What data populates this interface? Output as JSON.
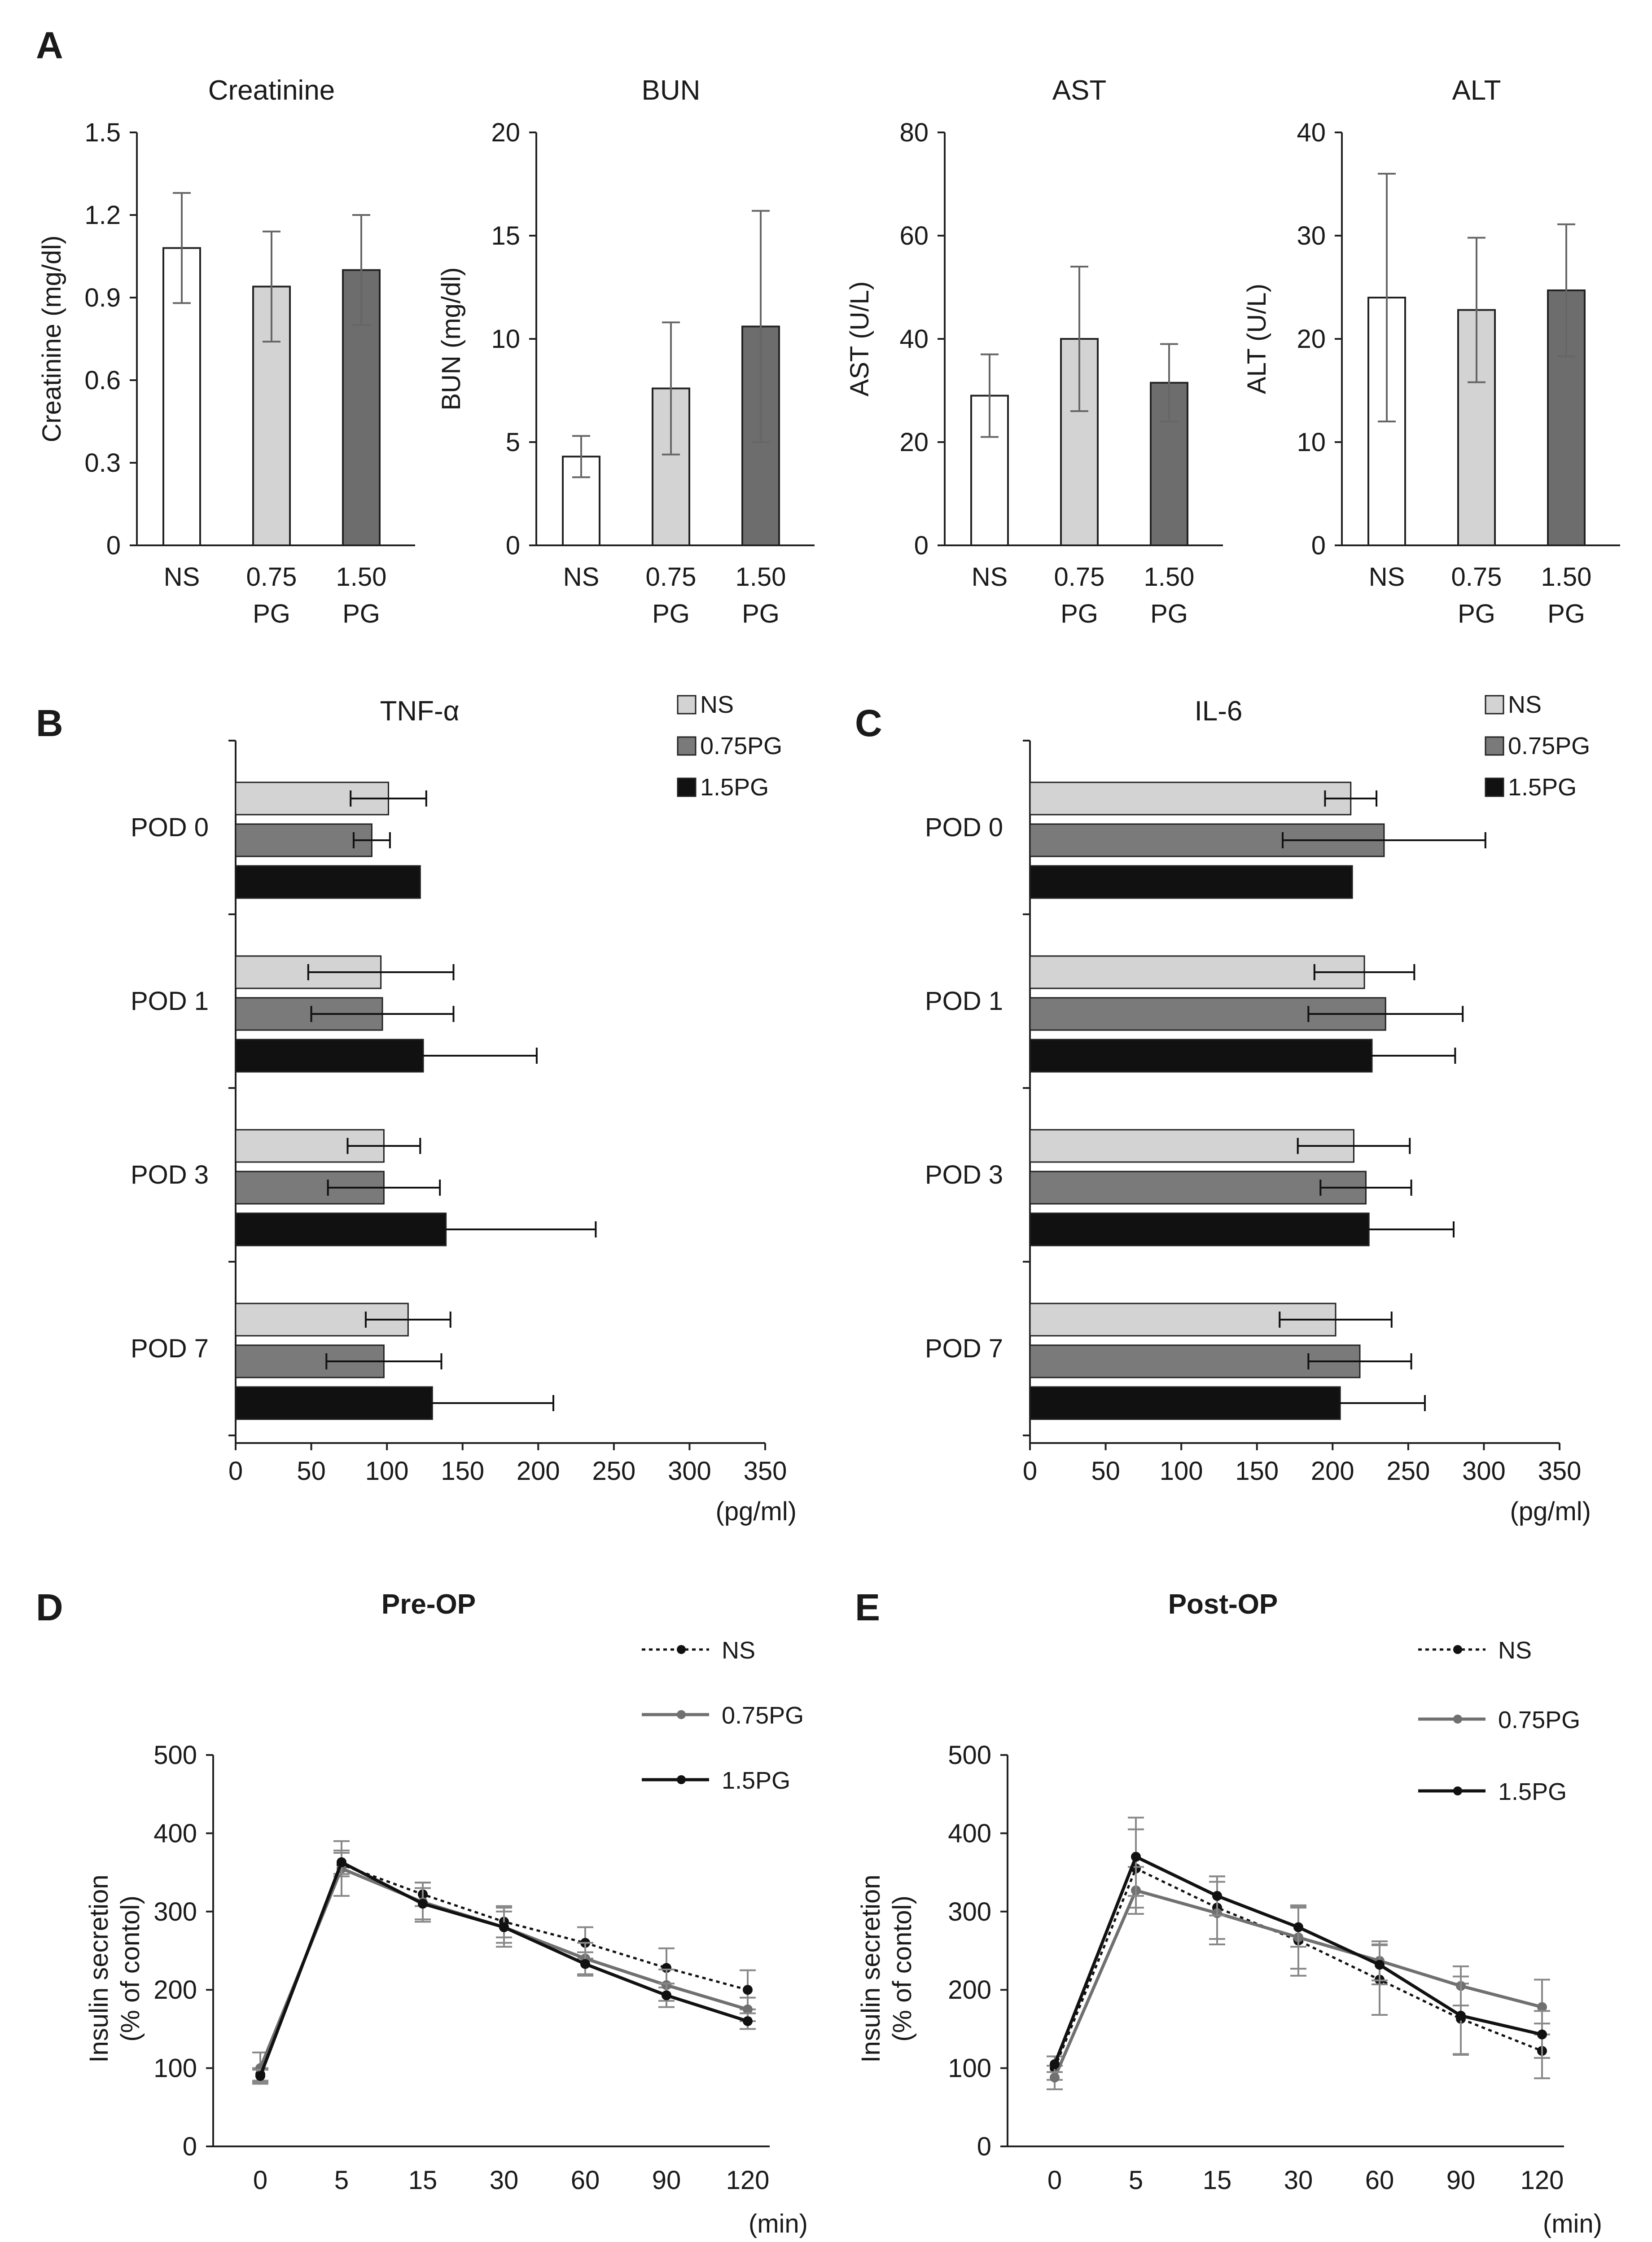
{
  "panels": {
    "A": "A",
    "B": "B",
    "C": "C",
    "D": "D",
    "E": "E"
  },
  "chart_data": [
    {
      "id": "A1",
      "type": "bar",
      "title": "Creatinine",
      "ylabel": "Creatinine (mg/dl)",
      "ylim": [
        0,
        1.5
      ],
      "yticks": [
        0,
        0.3,
        0.6,
        0.9,
        1.2,
        1.5
      ],
      "ytick_labels": [
        "0",
        "0.3",
        "0.6",
        "0.9",
        "1.2",
        "1.5"
      ],
      "categories": [
        [
          "NS"
        ],
        [
          "0.75",
          "PG"
        ],
        [
          "1.50",
          "PG"
        ]
      ],
      "values": [
        1.08,
        0.94,
        1.0
      ],
      "errors": [
        0.2,
        0.2,
        0.2
      ],
      "colors": [
        "#ffffff",
        "#d3d3d3",
        "#6d6d6d"
      ]
    },
    {
      "id": "A2",
      "type": "bar",
      "title": "BUN",
      "ylabel": "BUN (mg/dl)",
      "ylim": [
        0,
        20
      ],
      "yticks": [
        0,
        5,
        10,
        15,
        20
      ],
      "ytick_labels": [
        "0",
        "5",
        "10",
        "15",
        "20"
      ],
      "categories": [
        [
          "NS"
        ],
        [
          "0.75",
          "PG"
        ],
        [
          "1.50",
          "PG"
        ]
      ],
      "values": [
        4.3,
        7.6,
        10.6
      ],
      "errors": [
        1.0,
        3.2,
        5.6
      ],
      "colors": [
        "#ffffff",
        "#d3d3d3",
        "#6d6d6d"
      ]
    },
    {
      "id": "A3",
      "type": "bar",
      "title": "AST",
      "ylabel": "AST (U/L)",
      "ylim": [
        0,
        80
      ],
      "yticks": [
        0,
        20,
        40,
        60,
        80
      ],
      "ytick_labels": [
        "0",
        "20",
        "40",
        "60",
        "80"
      ],
      "categories": [
        [
          "NS"
        ],
        [
          "0.75",
          "PG"
        ],
        [
          "1.50",
          "PG"
        ]
      ],
      "values": [
        29,
        40,
        31.5
      ],
      "errors": [
        8,
        14,
        7.5
      ],
      "colors": [
        "#ffffff",
        "#d3d3d3",
        "#6d6d6d"
      ]
    },
    {
      "id": "A4",
      "type": "bar",
      "title": "ALT",
      "ylabel": "ALT (U/L)",
      "ylim": [
        0,
        40
      ],
      "yticks": [
        0,
        10,
        20,
        30,
        40
      ],
      "ytick_labels": [
        "0",
        "10",
        "20",
        "30",
        "40"
      ],
      "categories": [
        [
          "NS"
        ],
        [
          "0.75",
          "PG"
        ],
        [
          "1.50",
          "PG"
        ]
      ],
      "values": [
        24,
        22.8,
        24.7
      ],
      "errors": [
        12,
        7,
        6.4
      ],
      "colors": [
        "#ffffff",
        "#d3d3d3",
        "#6d6d6d"
      ]
    },
    {
      "id": "B",
      "type": "bar",
      "orientation": "horizontal",
      "title": "TNF-α",
      "xlabel": "(pg/ml)",
      "xlim": [
        0,
        350
      ],
      "xticks": [
        0,
        50,
        100,
        150,
        200,
        250,
        300,
        350
      ],
      "categories": [
        "POD 0",
        "POD 1",
        "POD 3",
        "POD 7"
      ],
      "series": [
        {
          "name": "NS",
          "color": "#d3d3d3",
          "values": [
            101,
            96,
            98,
            114
          ],
          "errors": [
            25,
            48,
            24,
            28
          ]
        },
        {
          "name": "0.75PG",
          "color": "#7a7a7a",
          "values": [
            90,
            97,
            98,
            98
          ],
          "errors": [
            12,
            47,
            37,
            38
          ]
        },
        {
          "name": "1.5PG",
          "color": "#111111",
          "values": [
            122,
            124,
            139,
            130
          ],
          "errors": [
            0,
            75,
            99,
            80
          ]
        }
      ]
    },
    {
      "id": "C",
      "type": "bar",
      "orientation": "horizontal",
      "title": "IL-6",
      "xlabel": "(pg/ml)",
      "xlim": [
        0,
        350
      ],
      "xticks": [
        0,
        50,
        100,
        150,
        200,
        250,
        300,
        350
      ],
      "categories": [
        "POD 0",
        "POD 1",
        "POD 3",
        "POD 7"
      ],
      "series": [
        {
          "name": "NS",
          "color": "#d3d3d3",
          "values": [
            212,
            221,
            214,
            202
          ],
          "errors": [
            17,
            33,
            37,
            37
          ]
        },
        {
          "name": "0.75PG",
          "color": "#7a7a7a",
          "values": [
            234,
            235,
            222,
            218
          ],
          "errors": [
            67,
            51,
            30,
            34
          ]
        },
        {
          "name": "1.5PG",
          "color": "#111111",
          "values": [
            213,
            226,
            224,
            205
          ],
          "errors": [
            0,
            55,
            56,
            56
          ]
        }
      ]
    },
    {
      "id": "D",
      "type": "line",
      "title": "Pre-OP",
      "ylabel": [
        "Insulin secretion",
        "(% of contol)"
      ],
      "xlabel": "(min)",
      "ylim": [
        0,
        500
      ],
      "yticks": [
        0,
        100,
        200,
        300,
        400,
        500
      ],
      "x": [
        "0",
        "5",
        "15",
        "30",
        "60",
        "90",
        "120"
      ],
      "series": [
        {
          "name": "NS",
          "style": "dotted",
          "color": "#111111",
          "values": [
            92,
            360,
            322,
            287,
            260,
            228,
            200
          ],
          "errors": [
            8,
            15,
            15,
            20,
            20,
            25,
            25
          ]
        },
        {
          "name": "0.75PG",
          "style": "solid",
          "color": "#707070",
          "values": [
            100,
            355,
            312,
            280,
            240,
            206,
            175
          ],
          "errors": [
            20,
            35,
            25,
            25,
            20,
            20,
            15
          ]
        },
        {
          "name": "1.5PG",
          "style": "solid",
          "color": "#111111",
          "values": [
            90,
            363,
            310,
            280,
            233,
            193,
            160
          ],
          "errors": [
            8,
            15,
            20,
            20,
            15,
            15,
            10
          ]
        }
      ]
    },
    {
      "id": "E",
      "type": "line",
      "title": "Post-OP",
      "ylabel": [
        "Insulin secretion",
        "(% of contol)"
      ],
      "xlabel": "(min)",
      "ylim": [
        0,
        500
      ],
      "yticks": [
        0,
        100,
        200,
        300,
        400,
        500
      ],
      "x": [
        "0",
        "5",
        "15",
        "30",
        "60",
        "90",
        "120"
      ],
      "series": [
        {
          "name": "NS",
          "style": "dotted",
          "color": "#111111",
          "values": [
            100,
            355,
            305,
            263,
            213,
            163,
            122
          ],
          "errors": [
            15,
            50,
            40,
            45,
            45,
            45,
            35
          ]
        },
        {
          "name": "0.75PG",
          "style": "solid",
          "color": "#707070",
          "values": [
            88,
            327,
            298,
            267,
            237,
            205,
            178
          ],
          "errors": [
            15,
            30,
            40,
            40,
            25,
            25,
            35
          ]
        },
        {
          "name": "1.5PG",
          "style": "solid",
          "color": "#111111",
          "values": [
            105,
            370,
            320,
            280,
            232,
            167,
            143
          ],
          "errors": [
            10,
            50,
            25,
            25,
            25,
            50,
            30
          ]
        }
      ]
    }
  ]
}
